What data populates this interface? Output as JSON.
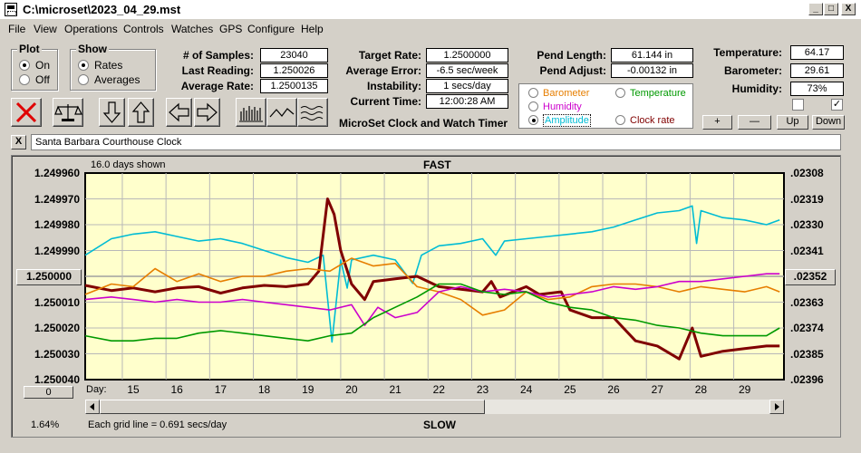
{
  "window": {
    "title": "C:\\microset\\2023_04_29.mst",
    "minimize_label": "_",
    "maximize_label": "□",
    "close_label": "X"
  },
  "menu": [
    "File",
    "View",
    "Operations",
    "Controls",
    "Watches",
    "GPS",
    "Configure",
    "Help"
  ],
  "plot_group": {
    "title": "Plot",
    "on_label": "On",
    "off_label": "Off",
    "selected": "On"
  },
  "show_group": {
    "title": "Show",
    "rates_label": "Rates",
    "averages_label": "Averages",
    "selected": "Rates"
  },
  "stats": {
    "samples_label": "# of Samples:",
    "samples_value": "23040",
    "last_reading_label": "Last Reading:",
    "last_reading_value": "1.250026",
    "average_rate_label": "Average Rate:",
    "average_rate_value": "1.2500135",
    "target_rate_label": "Target Rate:",
    "target_rate_value": "1.2500000",
    "average_error_label": "Average Error:",
    "average_error_value": "-6.5 sec/week",
    "instability_label": "Instability:",
    "instability_value": "1 secs/day",
    "current_time_label": "Current Time:",
    "current_time_value": "12:00:28 AM",
    "pend_length_label": "Pend Length:",
    "pend_length_value": "61.144 in",
    "pend_adjust_label": "Pend Adjust:",
    "pend_adjust_value": "-0.00132 in",
    "temperature_label": "Temperature:",
    "temperature_value": "64.17",
    "barometer_label": "Barometer:",
    "barometer_value": "29.61",
    "humidity_label": "Humidity:",
    "humidity_value": "73%"
  },
  "app_caption": "MicroSet Clock and Watch Timer",
  "sensors": {
    "barometer": {
      "label": "Barometer",
      "color": "#e67e00"
    },
    "temperature": {
      "label": "Temperature",
      "color": "#009900"
    },
    "humidity": {
      "label": "Humidity",
      "color": "#cc00cc"
    },
    "amplitude": {
      "label": "Amplitude",
      "color": "#00bcd4"
    },
    "clock_rate": {
      "label": "Clock rate",
      "color": "#800000"
    },
    "selected": "Amplitude"
  },
  "adjust_buttons": {
    "plus": "+",
    "minus": "—",
    "up": "Up",
    "down": "Down"
  },
  "checkboxes": {
    "left_checked": false,
    "right_checked": true,
    "right_mark": "✓"
  },
  "clock_name": "Santa Barbara Courthouse Clock",
  "clock_close_label": "X",
  "graph": {
    "days_shown": "16.0 days shown",
    "top_label": "FAST",
    "bottom_label": "SLOW",
    "day_label": "Day:",
    "grid_note": "Each grid line = 0.691 secs/day",
    "percent_label": "1.64%",
    "center_button_label": "1.250000",
    "bottom_button_label": "0",
    "right_center_button_label": ".02352",
    "left_axis": [
      "1.249960",
      "1.249970",
      "1.249980",
      "1.249990",
      "",
      "1.250010",
      "1.250020",
      "1.250030",
      "1.250040"
    ],
    "right_axis": [
      ".02308",
      ".02319",
      ".02330",
      ".02341",
      "",
      ".02363",
      ".02374",
      ".02385",
      ".02396"
    ],
    "bg_color": "#ffffcc"
  },
  "chart_data": {
    "type": "line",
    "x_label": "Day:",
    "x_ticks": [
      15,
      16,
      17,
      18,
      19,
      20,
      21,
      22,
      23,
      24,
      25,
      26,
      27,
      28,
      29
    ],
    "xlim": [
      13.9,
      29.9
    ],
    "y_left": {
      "ticks": [
        "1.249960",
        "1.249970",
        "1.249980",
        "1.249990",
        "1.250000",
        "1.250010",
        "1.250020",
        "1.250030",
        "1.250040"
      ],
      "reversed": true,
      "ylim": [
        1.24996,
        1.25004
      ]
    },
    "y_right": {
      "ticks": [
        ".02308",
        ".02319",
        ".02330",
        ".02341",
        ".02352",
        ".02363",
        ".02374",
        ".02385",
        ".02396"
      ],
      "ylim": [
        0.02308,
        0.02396
      ]
    },
    "grid": true,
    "series": [
      {
        "name": "Amplitude",
        "color": "#00bcd4",
        "axis": "right",
        "points": [
          [
            13.9,
            0.02343
          ],
          [
            14.5,
            0.02336
          ],
          [
            15,
            0.02334
          ],
          [
            15.5,
            0.02333
          ],
          [
            16,
            0.02335
          ],
          [
            16.5,
            0.02337
          ],
          [
            17,
            0.02336
          ],
          [
            17.5,
            0.02338
          ],
          [
            18,
            0.02341
          ],
          [
            18.5,
            0.02344
          ],
          [
            19,
            0.02346
          ],
          [
            19.35,
            0.02343
          ],
          [
            19.55,
            0.0238
          ],
          [
            19.75,
            0.02345
          ],
          [
            19.9,
            0.02357
          ],
          [
            20,
            0.02345
          ],
          [
            20.5,
            0.02343
          ],
          [
            21,
            0.02345
          ],
          [
            21.4,
            0.02355
          ],
          [
            21.6,
            0.02343
          ],
          [
            22,
            0.02339
          ],
          [
            22.5,
            0.02338
          ],
          [
            23,
            0.02336
          ],
          [
            23.3,
            0.02343
          ],
          [
            23.5,
            0.02337
          ],
          [
            24,
            0.02336
          ],
          [
            24.5,
            0.02335
          ],
          [
            25,
            0.02334
          ],
          [
            25.5,
            0.02333
          ],
          [
            26,
            0.02331
          ],
          [
            26.5,
            0.02328
          ],
          [
            27,
            0.02325
          ],
          [
            27.5,
            0.02324
          ],
          [
            27.8,
            0.02322
          ],
          [
            27.9,
            0.02338
          ],
          [
            28,
            0.02324
          ],
          [
            28.5,
            0.02327
          ],
          [
            29,
            0.02328
          ],
          [
            29.5,
            0.0233
          ],
          [
            29.8,
            0.02328
          ]
        ]
      },
      {
        "name": "Clock rate",
        "color": "#800000",
        "axis": "left",
        "points": [
          [
            13.9,
            1.2500035
          ],
          [
            14.5,
            1.2500055
          ],
          [
            15,
            1.2500045
          ],
          [
            15.5,
            1.250006
          ],
          [
            16,
            1.2500045
          ],
          [
            16.5,
            1.250004
          ],
          [
            17,
            1.2500065
          ],
          [
            17.5,
            1.2500045
          ],
          [
            18,
            1.2500035
          ],
          [
            18.5,
            1.250004
          ],
          [
            19,
            1.250003
          ],
          [
            19.25,
            1.249998
          ],
          [
            19.45,
            1.24997
          ],
          [
            19.6,
            1.249976
          ],
          [
            19.75,
            1.24999
          ],
          [
            20,
            1.250003
          ],
          [
            20.3,
            1.250009
          ],
          [
            20.5,
            1.250002
          ],
          [
            21,
            1.250001
          ],
          [
            21.5,
            1.25
          ],
          [
            22,
            1.250004
          ],
          [
            22.5,
            1.250005
          ],
          [
            23,
            1.250006
          ],
          [
            23.2,
            1.250002
          ],
          [
            23.4,
            1.250008
          ],
          [
            24,
            1.250004
          ],
          [
            24.3,
            1.250007
          ],
          [
            24.8,
            1.250006
          ],
          [
            25,
            1.250013
          ],
          [
            25.5,
            1.250016
          ],
          [
            26,
            1.250016
          ],
          [
            26.5,
            1.250025
          ],
          [
            27,
            1.250027
          ],
          [
            27.5,
            1.250032
          ],
          [
            27.8,
            1.25002
          ],
          [
            28,
            1.250031
          ],
          [
            28.5,
            1.250029
          ],
          [
            29,
            1.250028
          ],
          [
            29.5,
            1.250027
          ],
          [
            29.8,
            1.250027
          ]
        ]
      },
      {
        "name": "Barometer",
        "color": "#e67e00",
        "axis": "left",
        "points": [
          [
            13.9,
            1.250007
          ],
          [
            14.5,
            1.250003
          ],
          [
            15,
            1.250004
          ],
          [
            15.5,
            1.249997
          ],
          [
            16,
            1.250002
          ],
          [
            16.5,
            1.249999
          ],
          [
            17,
            1.250002
          ],
          [
            17.5,
            1.25
          ],
          [
            18,
            1.25
          ],
          [
            18.5,
            1.249998
          ],
          [
            19,
            1.249997
          ],
          [
            19.5,
            1.249998
          ],
          [
            20,
            1.249993
          ],
          [
            20.5,
            1.249996
          ],
          [
            21,
            1.249995
          ],
          [
            21.5,
            1.250004
          ],
          [
            22,
            1.250006
          ],
          [
            22.5,
            1.250009
          ],
          [
            23,
            1.250015
          ],
          [
            23.5,
            1.250013
          ],
          [
            24,
            1.250006
          ],
          [
            24.5,
            1.250009
          ],
          [
            25,
            1.250008
          ],
          [
            25.5,
            1.250004
          ],
          [
            26,
            1.250003
          ],
          [
            26.5,
            1.250003
          ],
          [
            27,
            1.250004
          ],
          [
            27.5,
            1.250006
          ],
          [
            28,
            1.250004
          ],
          [
            28.5,
            1.250005
          ],
          [
            29,
            1.250006
          ],
          [
            29.5,
            1.250004
          ],
          [
            29.8,
            1.250006
          ]
        ]
      },
      {
        "name": "Humidity",
        "color": "#cc00cc",
        "axis": "left",
        "points": [
          [
            13.9,
            1.250009
          ],
          [
            14.5,
            1.250008
          ],
          [
            15,
            1.250009
          ],
          [
            15.5,
            1.25001
          ],
          [
            16,
            1.250009
          ],
          [
            16.5,
            1.25001
          ],
          [
            17,
            1.25001
          ],
          [
            17.5,
            1.250009
          ],
          [
            18,
            1.25001
          ],
          [
            18.5,
            1.250011
          ],
          [
            19,
            1.250012
          ],
          [
            19.5,
            1.250013
          ],
          [
            20,
            1.250011
          ],
          [
            20.3,
            1.250019
          ],
          [
            20.6,
            1.250012
          ],
          [
            21,
            1.250016
          ],
          [
            21.5,
            1.250014
          ],
          [
            22,
            1.250006
          ],
          [
            22.5,
            1.250004
          ],
          [
            23,
            1.250006
          ],
          [
            23.5,
            1.250005
          ],
          [
            24,
            1.250006
          ],
          [
            24.5,
            1.250008
          ],
          [
            25,
            1.250007
          ],
          [
            25.5,
            1.250006
          ],
          [
            26,
            1.250004
          ],
          [
            26.5,
            1.250005
          ],
          [
            27,
            1.250004
          ],
          [
            27.5,
            1.250002
          ],
          [
            28,
            1.250002
          ],
          [
            28.5,
            1.250001
          ],
          [
            29,
            1.25
          ],
          [
            29.5,
            1.249999
          ],
          [
            29.8,
            1.249999
          ]
        ]
      },
      {
        "name": "Temperature",
        "color": "#009900",
        "axis": "left",
        "points": [
          [
            13.9,
            1.250023
          ],
          [
            14.5,
            1.250025
          ],
          [
            15,
            1.250025
          ],
          [
            15.5,
            1.250024
          ],
          [
            16,
            1.250024
          ],
          [
            16.5,
            1.250022
          ],
          [
            17,
            1.250021
          ],
          [
            17.5,
            1.250022
          ],
          [
            18,
            1.250023
          ],
          [
            18.5,
            1.250024
          ],
          [
            19,
            1.250025
          ],
          [
            19.5,
            1.250023
          ],
          [
            20,
            1.250022
          ],
          [
            20.5,
            1.250016
          ],
          [
            21,
            1.250012
          ],
          [
            21.5,
            1.250008
          ],
          [
            22,
            1.250003
          ],
          [
            22.5,
            1.250003
          ],
          [
            23,
            1.250006
          ],
          [
            23.5,
            1.250007
          ],
          [
            24,
            1.250006
          ],
          [
            24.5,
            1.25001
          ],
          [
            25,
            1.250012
          ],
          [
            25.5,
            1.250013
          ],
          [
            26,
            1.250016
          ],
          [
            26.5,
            1.250017
          ],
          [
            27,
            1.250019
          ],
          [
            27.5,
            1.25002
          ],
          [
            28,
            1.250022
          ],
          [
            28.5,
            1.250023
          ],
          [
            29,
            1.250023
          ],
          [
            29.5,
            1.250023
          ],
          [
            29.8,
            1.25002
          ]
        ]
      }
    ]
  }
}
